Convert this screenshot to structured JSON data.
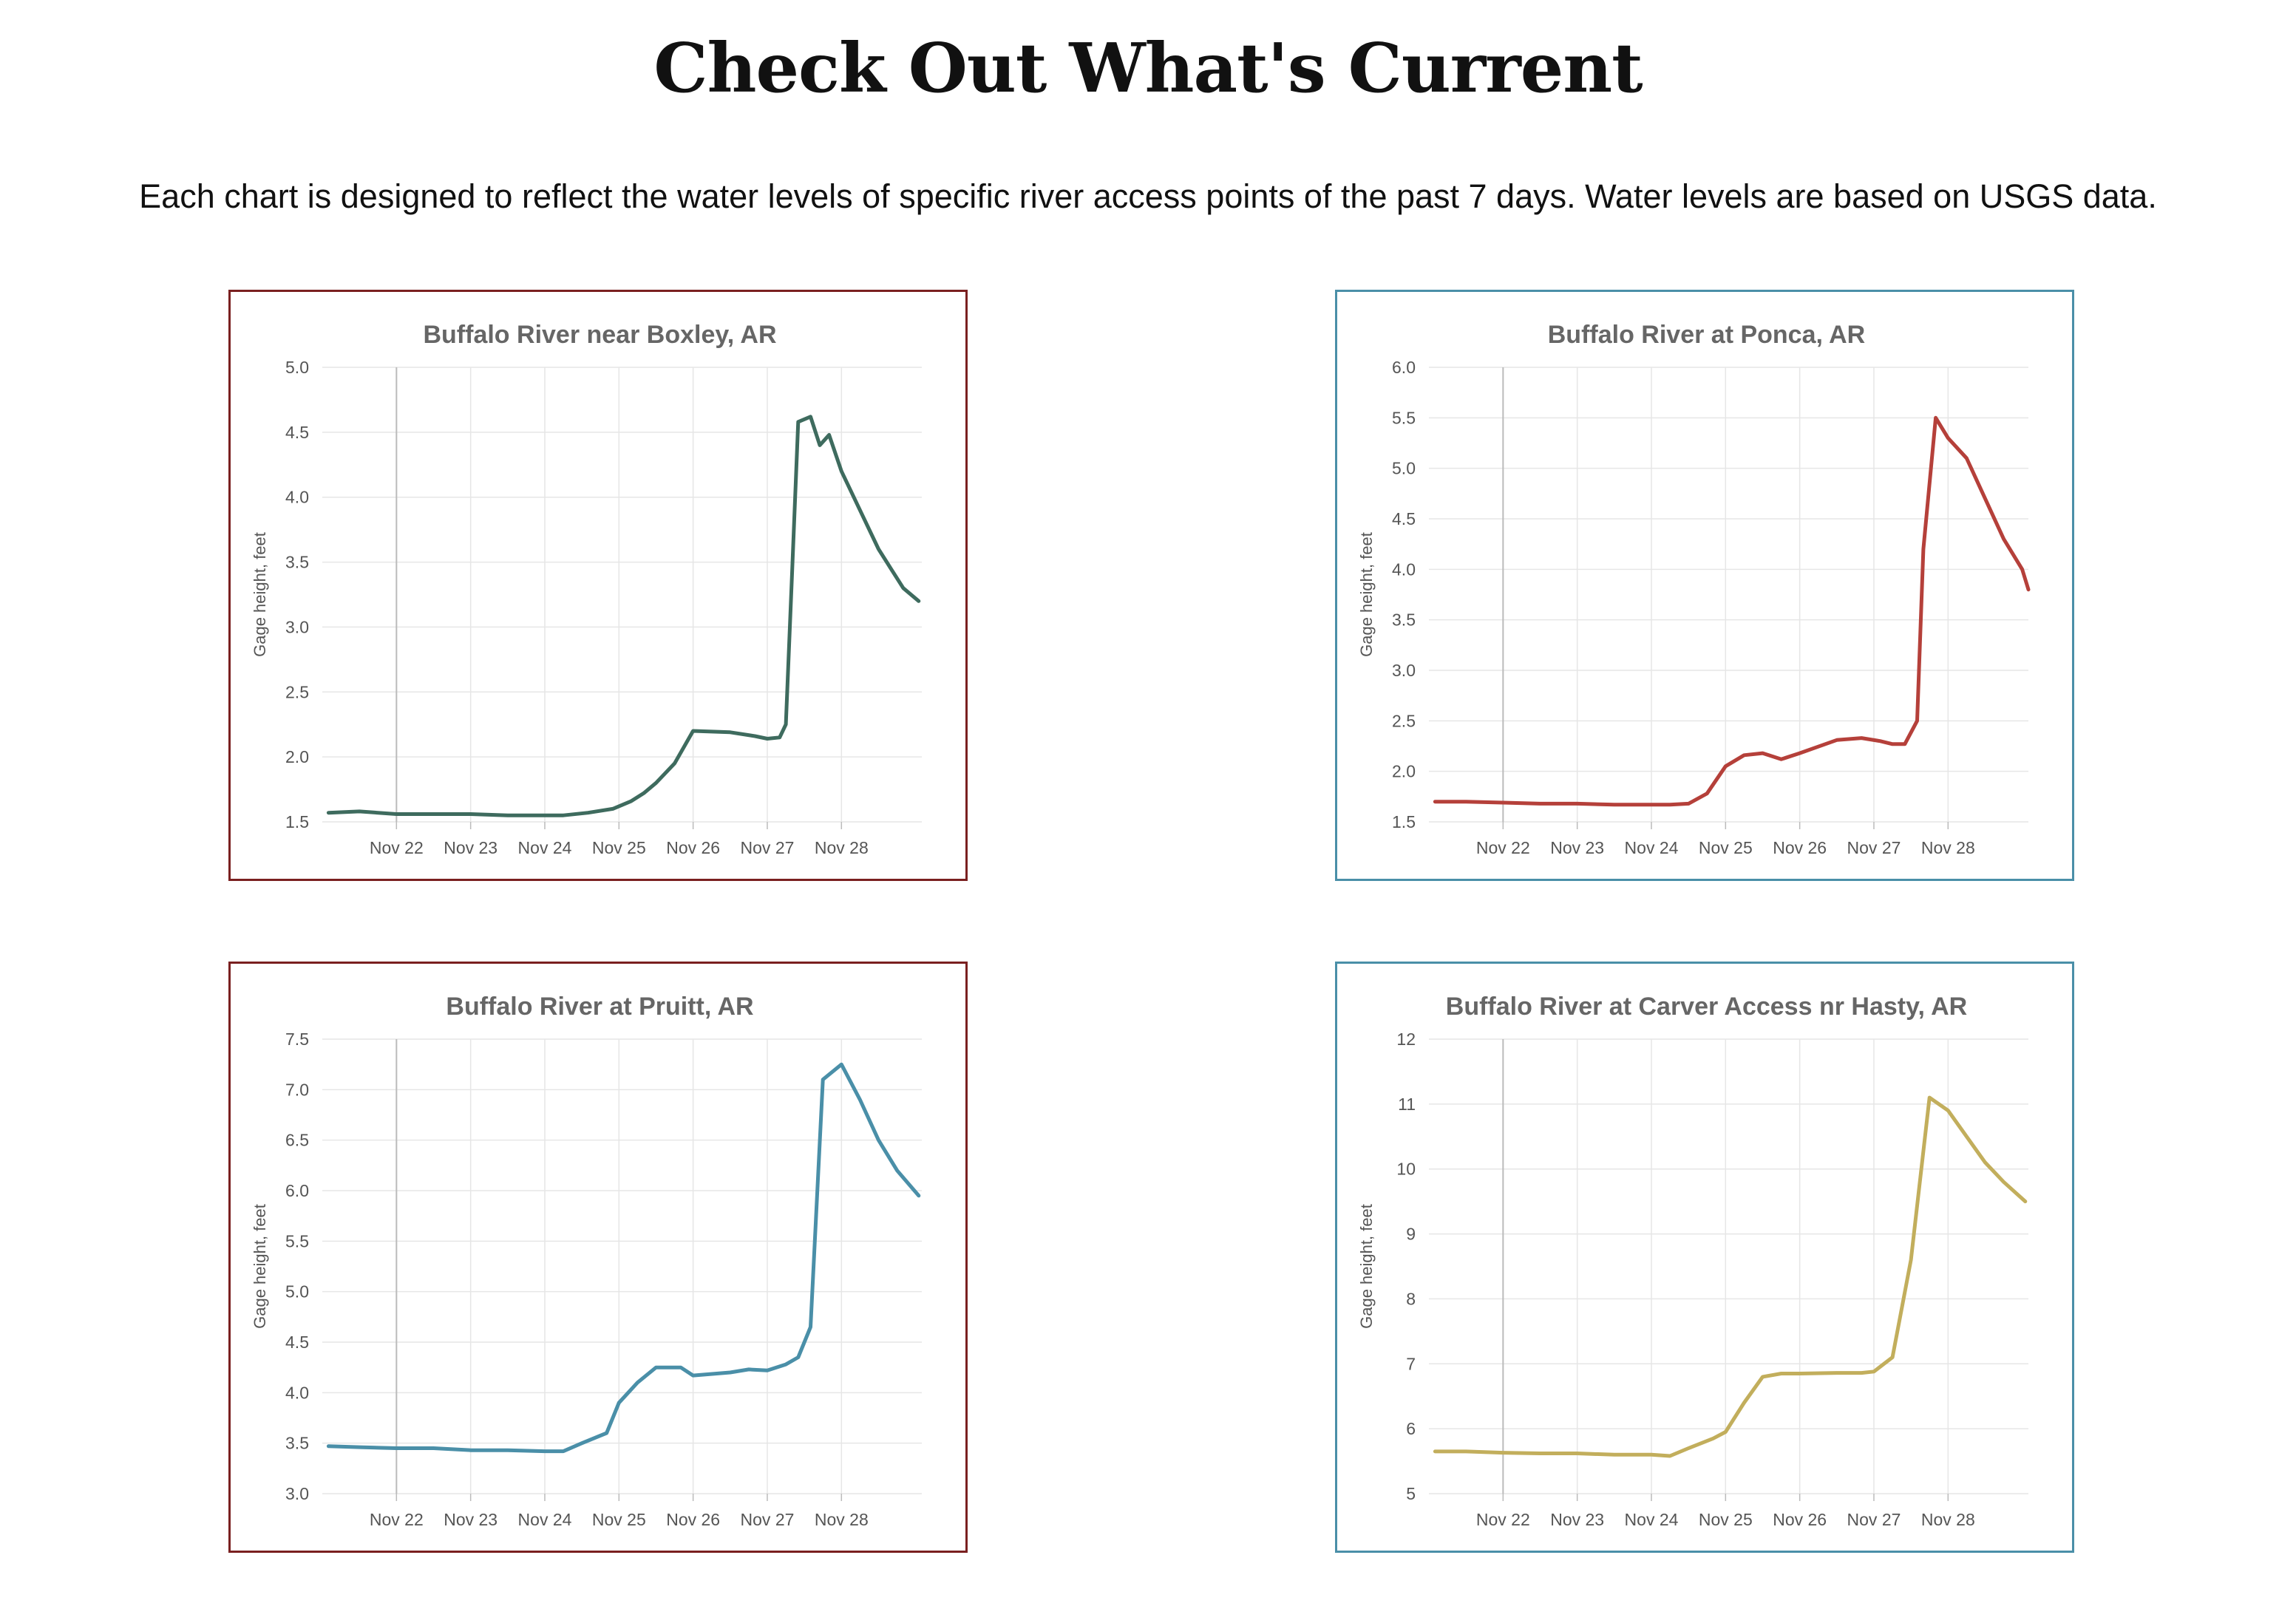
{
  "page": {
    "title": "Check Out What's Current",
    "description": "Each chart is designed to reflect the water levels of specific river access points of the past 7 days. Water levels are based on USGS data."
  },
  "chart_data": [
    {
      "type": "line",
      "title": "Buffalo River near Boxley, AR",
      "ylabel": "Gage height, feet",
      "xlabel": "",
      "ylim": [
        1.5,
        5.0
      ],
      "yticks": [
        1.5,
        2.0,
        2.5,
        3.0,
        3.5,
        4.0,
        4.5,
        5.0
      ],
      "ytick_labels": [
        "1.5",
        "2.0",
        "2.5",
        "3.0",
        "3.5",
        "4.0",
        "4.5",
        "5.0"
      ],
      "xlim": [
        "Nov 21 2024",
        "Nov 28 2024"
      ],
      "xticks": [
        "Nov 22 2024",
        "Nov 23 2024",
        "Nov 24 2024",
        "Nov 25 2024",
        "Nov 26 2024",
        "Nov 27 2024",
        "Nov 28 2024"
      ],
      "xtick_labels": [
        "Nov 22",
        "Nov 23",
        "Nov 24",
        "Nov 25",
        "Nov 26",
        "Nov 27",
        "Nov 28"
      ],
      "grid": true,
      "line_color": "#3e6b5e",
      "border_color": "#7a2020",
      "series": [
        {
          "x": [
            "Nov 21 2024 02:00",
            "Nov 21 2024 12:00",
            "Nov 22 2024 00:00",
            "Nov 22 2024 12:00",
            "Nov 23 2024 00:00",
            "Nov 23 2024 12:00",
            "Nov 24 2024 00:00",
            "Nov 24 2024 06:00",
            "Nov 24 2024 14:00",
            "Nov 24 2024 22:00",
            "Nov 25 2024 04:00",
            "Nov 25 2024 08:00",
            "Nov 25 2024 12:00",
            "Nov 25 2024 18:00",
            "Nov 26 2024 00:00",
            "Nov 26 2024 12:00",
            "Nov 26 2024 20:00",
            "Nov 27 2024 00:00",
            "Nov 27 2024 04:00",
            "Nov 27 2024 06:00",
            "Nov 27 2024 08:00",
            "Nov 27 2024 10:00",
            "Nov 27 2024 14:00",
            "Nov 27 2024 17:00",
            "Nov 27 2024 20:00",
            "Nov 28 2024 00:00",
            "Nov 28 2024 06:00",
            "Nov 28 2024 12:00",
            "Nov 28 2024 16:00",
            "Nov 28 2024 20:00",
            "Nov 29 2024 01:00"
          ],
          "y": [
            1.57,
            1.58,
            1.56,
            1.56,
            1.56,
            1.55,
            1.55,
            1.55,
            1.57,
            1.6,
            1.66,
            1.72,
            1.8,
            1.95,
            2.2,
            2.19,
            2.16,
            2.14,
            2.15,
            2.25,
            3.4,
            4.58,
            4.62,
            4.4,
            4.48,
            4.2,
            3.9,
            3.6,
            3.45,
            3.3,
            3.2
          ]
        }
      ]
    },
    {
      "type": "line",
      "title": "Buffalo River at Ponca, AR",
      "ylabel": "Gage height, feet",
      "xlabel": "",
      "ylim": [
        1.5,
        6.0
      ],
      "yticks": [
        1.5,
        2.0,
        2.5,
        3.0,
        3.5,
        4.0,
        4.5,
        5.0,
        5.5,
        6.0
      ],
      "ytick_labels": [
        "1.5",
        "2.0",
        "2.5",
        "3.0",
        "3.5",
        "4.0",
        "4.5",
        "5.0",
        "5.5",
        "6.0"
      ],
      "xlim": [
        "Nov 21 2024",
        "Nov 28 2024"
      ],
      "xticks": [
        "Nov 22 2024",
        "Nov 23 2024",
        "Nov 24 2024",
        "Nov 25 2024",
        "Nov 26 2024",
        "Nov 27 2024",
        "Nov 28 2024"
      ],
      "xtick_labels": [
        "Nov 22",
        "Nov 23",
        "Nov 24",
        "Nov 25",
        "Nov 26",
        "Nov 27",
        "Nov 28"
      ],
      "grid": true,
      "line_color": "#b5403a",
      "border_color": "#4a8fa8",
      "series": [
        {
          "x": [
            "Nov 21 2024 02:00",
            "Nov 21 2024 12:00",
            "Nov 22 2024 00:00",
            "Nov 22 2024 12:00",
            "Nov 23 2024 00:00",
            "Nov 23 2024 12:00",
            "Nov 24 2024 00:00",
            "Nov 24 2024 06:00",
            "Nov 24 2024 12:00",
            "Nov 24 2024 18:00",
            "Nov 25 2024 00:00",
            "Nov 25 2024 06:00",
            "Nov 25 2024 12:00",
            "Nov 25 2024 18:00",
            "Nov 26 2024 00:00",
            "Nov 26 2024 12:00",
            "Nov 26 2024 20:00",
            "Nov 27 2024 02:00",
            "Nov 27 2024 06:00",
            "Nov 27 2024 10:00",
            "Nov 27 2024 14:00",
            "Nov 27 2024 16:00",
            "Nov 27 2024 20:00",
            "Nov 28 2024 00:00",
            "Nov 28 2024 06:00",
            "Nov 28 2024 12:00",
            "Nov 28 2024 18:00",
            "Nov 29 2024 00:00",
            "Nov 29 2024 02:00"
          ],
          "y": [
            1.7,
            1.7,
            1.69,
            1.68,
            1.68,
            1.67,
            1.67,
            1.67,
            1.68,
            1.78,
            2.05,
            2.16,
            2.18,
            2.12,
            2.18,
            2.31,
            2.33,
            2.3,
            2.27,
            2.27,
            2.5,
            4.2,
            5.5,
            5.3,
            5.1,
            4.7,
            4.3,
            4.0,
            3.8
          ]
        }
      ]
    },
    {
      "type": "line",
      "title": "Buffalo River at Pruitt, AR",
      "ylabel": "Gage height, feet",
      "xlabel": "",
      "ylim": [
        3.0,
        7.5
      ],
      "yticks": [
        3.0,
        3.5,
        4.0,
        4.5,
        5.0,
        5.5,
        6.0,
        6.5,
        7.0,
        7.5
      ],
      "ytick_labels": [
        "3.0",
        "3.5",
        "4.0",
        "4.5",
        "5.0",
        "5.5",
        "6.0",
        "6.5",
        "7.0",
        "7.5"
      ],
      "xlim": [
        "Nov 21 2024",
        "Nov 28 2024"
      ],
      "xticks": [
        "Nov 22 2024",
        "Nov 23 2024",
        "Nov 24 2024",
        "Nov 25 2024",
        "Nov 26 2024",
        "Nov 27 2024",
        "Nov 28 2024"
      ],
      "xtick_labels": [
        "Nov 22",
        "Nov 23",
        "Nov 24",
        "Nov 25",
        "Nov 26",
        "Nov 27",
        "Nov 28"
      ],
      "grid": true,
      "line_color": "#4a8fa8",
      "border_color": "#7a2020",
      "series": [
        {
          "x": [
            "Nov 21 2024 02:00",
            "Nov 21 2024 12:00",
            "Nov 22 2024 00:00",
            "Nov 22 2024 12:00",
            "Nov 23 2024 00:00",
            "Nov 23 2024 12:00",
            "Nov 24 2024 00:00",
            "Nov 24 2024 06:00",
            "Nov 24 2024 12:00",
            "Nov 24 2024 20:00",
            "Nov 25 2024 00:00",
            "Nov 25 2024 06:00",
            "Nov 25 2024 12:00",
            "Nov 25 2024 20:00",
            "Nov 26 2024 00:00",
            "Nov 26 2024 12:00",
            "Nov 26 2024 18:00",
            "Nov 27 2024 00:00",
            "Nov 27 2024 06:00",
            "Nov 27 2024 10:00",
            "Nov 27 2024 14:00",
            "Nov 27 2024 18:00",
            "Nov 28 2024 00:00",
            "Nov 28 2024 06:00",
            "Nov 28 2024 12:00",
            "Nov 28 2024 18:00",
            "Nov 29 2024 01:00"
          ],
          "y": [
            3.47,
            3.46,
            3.45,
            3.45,
            3.43,
            3.43,
            3.42,
            3.42,
            3.5,
            3.6,
            3.9,
            4.1,
            4.25,
            4.25,
            4.17,
            4.2,
            4.23,
            4.22,
            4.28,
            4.35,
            4.65,
            7.1,
            7.25,
            6.9,
            6.5,
            6.2,
            5.95
          ]
        }
      ]
    },
    {
      "type": "line",
      "title": "Buffalo River at Carver Access nr Hasty, AR",
      "ylabel": "Gage height, feet",
      "xlabel": "",
      "ylim": [
        5,
        12
      ],
      "yticks": [
        5,
        6,
        7,
        8,
        9,
        10,
        11,
        12
      ],
      "ytick_labels": [
        "5",
        "6",
        "7",
        "8",
        "9",
        "10",
        "11",
        "12"
      ],
      "xlim": [
        "Nov 21 2024",
        "Nov 28 2024"
      ],
      "xticks": [
        "Nov 22 2024",
        "Nov 23 2024",
        "Nov 24 2024",
        "Nov 25 2024",
        "Nov 26 2024",
        "Nov 27 2024",
        "Nov 28 2024"
      ],
      "xtick_labels": [
        "Nov 22",
        "Nov 23",
        "Nov 24",
        "Nov 25",
        "Nov 26",
        "Nov 27",
        "Nov 28"
      ],
      "grid": true,
      "line_color": "#c2ae5c",
      "border_color": "#4a8fa8",
      "series": [
        {
          "x": [
            "Nov 21 2024 02:00",
            "Nov 21 2024 12:00",
            "Nov 22 2024 00:00",
            "Nov 22 2024 12:00",
            "Nov 23 2024 00:00",
            "Nov 23 2024 12:00",
            "Nov 24 2024 00:00",
            "Nov 24 2024 06:00",
            "Nov 24 2024 12:00",
            "Nov 24 2024 20:00",
            "Nov 25 2024 00:00",
            "Nov 25 2024 06:00",
            "Nov 25 2024 12:00",
            "Nov 25 2024 18:00",
            "Nov 26 2024 00:00",
            "Nov 26 2024 12:00",
            "Nov 26 2024 20:00",
            "Nov 27 2024 00:00",
            "Nov 27 2024 06:00",
            "Nov 27 2024 12:00",
            "Nov 27 2024 18:00",
            "Nov 28 2024 00:00",
            "Nov 28 2024 06:00",
            "Nov 28 2024 12:00",
            "Nov 28 2024 18:00",
            "Nov 29 2024 01:00"
          ],
          "y": [
            5.65,
            5.65,
            5.63,
            5.62,
            5.62,
            5.6,
            5.6,
            5.58,
            5.7,
            5.85,
            5.95,
            6.4,
            6.8,
            6.85,
            6.85,
            6.86,
            6.86,
            6.88,
            7.1,
            8.6,
            11.1,
            10.9,
            10.5,
            10.1,
            9.8,
            9.5
          ]
        }
      ]
    }
  ]
}
